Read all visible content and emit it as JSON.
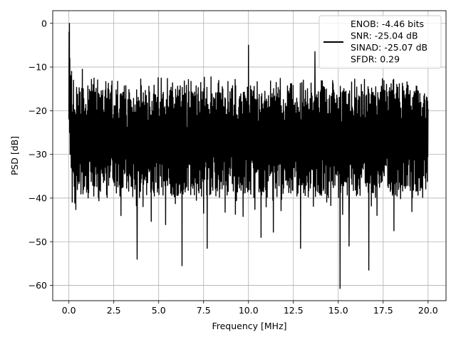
{
  "chart_data": {
    "type": "line",
    "title": "",
    "xlabel": "Frequency [MHz]",
    "ylabel": "PSD [dB]",
    "xlim": [
      -0.9,
      21.0
    ],
    "ylim": [
      -63.5,
      2.9
    ],
    "x_ticks": [
      0.0,
      2.5,
      5.0,
      7.5,
      10.0,
      12.5,
      15.0,
      17.5,
      20.0
    ],
    "x_tick_labels": [
      "0.0",
      "2.5",
      "5.0",
      "7.5",
      "10.0",
      "12.5",
      "15.0",
      "17.5",
      "20.0"
    ],
    "y_ticks": [
      0,
      -10,
      -20,
      -30,
      -40,
      -50,
      -60
    ],
    "y_tick_labels": [
      "0",
      "−10",
      "−20",
      "−30",
      "−40",
      "−50",
      "−60"
    ],
    "grid": true,
    "legend": {
      "placement": "top-right",
      "lines": [
        "ENOB: -4.46 bits",
        "SNR: -25.04 dB",
        "SINAD: -25.07 dB",
        "SFDR: 0.29"
      ]
    },
    "series": [
      {
        "color": "#000000",
        "x_range": [
          0.0,
          20.0
        ],
        "noise_floor_upper": -12,
        "noise_floor_lower": -38,
        "peak": {
          "x": 0.0,
          "y": 0.0
        },
        "notable_points": [
          {
            "x": 0.03,
            "y": 0.0
          },
          {
            "x": 0.05,
            "y": -8.0
          },
          {
            "x": 0.15,
            "y": -11.0
          },
          {
            "x": 0.75,
            "y": -10.5
          },
          {
            "x": 3.8,
            "y": -54.0
          },
          {
            "x": 6.3,
            "y": -55.5
          },
          {
            "x": 7.7,
            "y": -51.5
          },
          {
            "x": 10.0,
            "y": -5.0
          },
          {
            "x": 10.7,
            "y": -49.0
          },
          {
            "x": 12.9,
            "y": -51.5
          },
          {
            "x": 13.7,
            "y": -6.5
          },
          {
            "x": 15.1,
            "y": -60.7
          },
          {
            "x": 15.6,
            "y": -51.0
          },
          {
            "x": 16.7,
            "y": -56.5
          },
          {
            "x": 18.1,
            "y": -47.5
          }
        ]
      }
    ]
  }
}
